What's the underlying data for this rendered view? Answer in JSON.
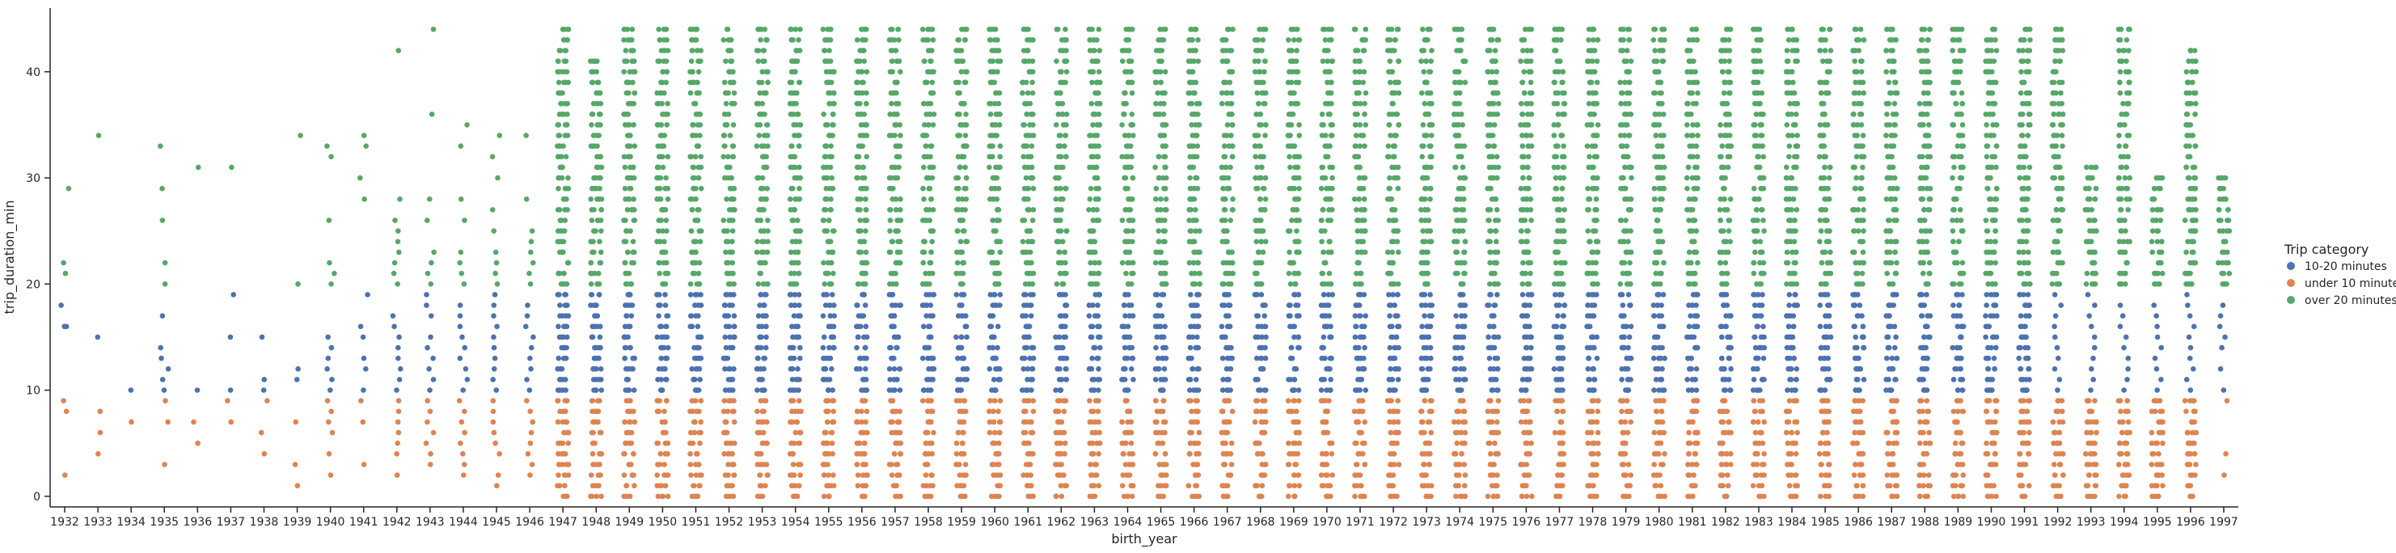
{
  "chart_data": {
    "type": "scatter",
    "subtype": "strip",
    "title": "",
    "xlabel": "birth_year",
    "ylabel": "trip_duration_min",
    "categories": [
      1932,
      1933,
      1934,
      1935,
      1936,
      1937,
      1938,
      1939,
      1940,
      1941,
      1942,
      1943,
      1944,
      1945,
      1946,
      1947,
      1948,
      1949,
      1950,
      1951,
      1952,
      1953,
      1954,
      1955,
      1956,
      1957,
      1958,
      1959,
      1960,
      1961,
      1962,
      1963,
      1964,
      1965,
      1966,
      1967,
      1968,
      1969,
      1970,
      1971,
      1972,
      1973,
      1974,
      1975,
      1976,
      1977,
      1978,
      1979,
      1980,
      1981,
      1982,
      1983,
      1984,
      1985,
      1986,
      1987,
      1988,
      1989,
      1990,
      1991,
      1992,
      1993,
      1994,
      1995,
      1996,
      1997
    ],
    "ylim": [
      -1,
      46
    ],
    "yticks": [
      0,
      10,
      20,
      30,
      40
    ],
    "grid": false,
    "legend": {
      "title": "Trip category",
      "placement": "right",
      "entries": [
        "10-20 minutes",
        "under 10 minutes",
        "over 20 minutes"
      ]
    },
    "series": [
      {
        "name": "10-20 minutes",
        "color": "#4c72b0",
        "ranges": {
          "default": [
            10,
            19
          ]
        },
        "points": {
          "1932": [
            16,
            18,
            16
          ],
          "1933": [
            15
          ],
          "1934": [
            10
          ],
          "1935": [
            10,
            11,
            12,
            13,
            14,
            17
          ],
          "1936": [
            10
          ],
          "1937": [
            10,
            15,
            19
          ],
          "1938": [
            10,
            11,
            15
          ],
          "1939": [
            11,
            12
          ],
          "1940": [
            10,
            11,
            12,
            13,
            14,
            15
          ],
          "1941": [
            10,
            12,
            13,
            15,
            16,
            19
          ],
          "1942": [
            10,
            11,
            12,
            13,
            14,
            15,
            16,
            17
          ],
          "1943": [
            10,
            11,
            12,
            13,
            14,
            15,
            17,
            18,
            19
          ],
          "1944": [
            10,
            11,
            12,
            13,
            14,
            15,
            16,
            17,
            18
          ],
          "1945": [
            10,
            11,
            12,
            13,
            14,
            15,
            16,
            17,
            18,
            19
          ],
          "1946": [
            10,
            11,
            12,
            13,
            14,
            15,
            16,
            17,
            18
          ],
          "1992": [
            10,
            11,
            12,
            13,
            14,
            15,
            16,
            17,
            18,
            19
          ],
          "1993": [
            10,
            11,
            12,
            13,
            14,
            15,
            16,
            17,
            18,
            19
          ],
          "1994": [
            10,
            11,
            12,
            13,
            14,
            15,
            16,
            17,
            18
          ],
          "1995": [
            10,
            11,
            12,
            13,
            14,
            15,
            16,
            17,
            18
          ],
          "1996": [
            10,
            11,
            12,
            13,
            14,
            15,
            16,
            17,
            18,
            19
          ],
          "1997": [
            10,
            12,
            14,
            15,
            16,
            17,
            18
          ]
        }
      },
      {
        "name": "under 10 minutes",
        "color": "#dd8452",
        "ranges": {
          "default": [
            0,
            9
          ]
        },
        "points": {
          "1932": [
            2,
            8,
            9
          ],
          "1933": [
            4,
            6,
            8
          ],
          "1934": [
            7
          ],
          "1935": [
            3,
            7,
            9
          ],
          "1936": [
            5,
            7
          ],
          "1937": [
            7,
            9
          ],
          "1938": [
            4,
            6,
            9
          ],
          "1939": [
            1,
            3,
            7
          ],
          "1940": [
            2,
            4,
            6,
            7,
            8,
            9
          ],
          "1941": [
            3,
            7,
            9
          ],
          "1942": [
            2,
            4,
            5,
            6,
            7,
            8,
            9
          ],
          "1943": [
            3,
            4,
            5,
            6,
            7,
            8,
            9
          ],
          "1944": [
            2,
            3,
            4,
            5,
            6,
            7,
            8,
            9
          ],
          "1945": [
            1,
            2,
            4,
            5,
            6,
            7,
            8,
            9
          ],
          "1946": [
            2,
            3,
            4,
            5,
            6,
            7,
            8,
            9
          ],
          "1997": [
            2,
            4,
            9
          ]
        }
      },
      {
        "name": "over 20 minutes",
        "color": "#55a868",
        "ranges": {
          "default": [
            20,
            44
          ],
          "1947": [
            20,
            44
          ],
          "1948": [
            20,
            41
          ],
          "1949": [
            20,
            44
          ],
          "1950": [
            20,
            44
          ],
          "1993": [
            20,
            31
          ],
          "1994": [
            20,
            44
          ],
          "1995": [
            20,
            30
          ],
          "1996": [
            20,
            42
          ],
          "1997": [
            20,
            30
          ]
        },
        "points": {
          "1932": [
            21,
            22,
            29
          ],
          "1933": [
            34
          ],
          "1934": [],
          "1935": [
            20,
            22,
            26,
            29,
            33
          ],
          "1936": [
            31
          ],
          "1937": [
            31
          ],
          "1938": [],
          "1939": [
            20,
            34
          ],
          "1940": [
            20,
            21,
            22,
            26,
            32,
            33
          ],
          "1941": [
            28,
            30,
            33,
            34
          ],
          "1942": [
            20,
            21,
            22,
            23,
            24,
            25,
            26,
            28,
            42
          ],
          "1943": [
            20,
            21,
            22,
            23,
            26,
            28,
            36,
            44
          ],
          "1944": [
            20,
            21,
            22,
            23,
            26,
            28,
            33,
            35
          ],
          "1945": [
            20,
            21,
            22,
            23,
            25,
            27,
            30,
            32,
            34
          ],
          "1946": [
            20,
            21,
            22,
            23,
            24,
            25,
            28,
            34
          ]
        }
      }
    ]
  }
}
